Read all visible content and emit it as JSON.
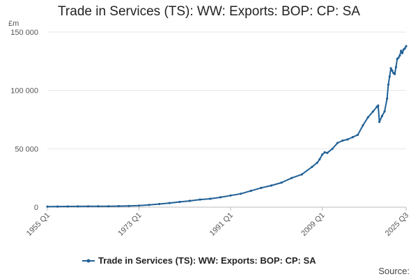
{
  "chart_data": {
    "type": "line",
    "title": "Trade in Services (TS): WW: Exports: BOP: CP: SA",
    "ylabel": "£m",
    "ylim": [
      0,
      150000
    ],
    "yticks": [
      0,
      50000,
      100000,
      150000
    ],
    "ytick_labels": [
      "0",
      "50 000",
      "100 000",
      "150 000"
    ],
    "xticks": [
      "1955 Q1",
      "1973 Q1",
      "1991 Q1",
      "2009 Q1",
      "2025 Q3"
    ],
    "grid": true,
    "legend_position": "bottom",
    "color": "#206095",
    "series": [
      {
        "name": "Trade in Services (TS): WW: Exports: BOP: CP: SA",
        "x": [
          "1955 Q1",
          "1957 Q1",
          "1959 Q1",
          "1961 Q1",
          "1963 Q1",
          "1965 Q1",
          "1967 Q1",
          "1969 Q1",
          "1971 Q1",
          "1973 Q1",
          "1975 Q1",
          "1977 Q1",
          "1979 Q1",
          "1981 Q1",
          "1983 Q1",
          "1985 Q1",
          "1987 Q1",
          "1989 Q1",
          "1991 Q1",
          "1993 Q1",
          "1995 Q1",
          "1997 Q1",
          "1999 Q1",
          "2001 Q1",
          "2003 Q1",
          "2005 Q1",
          "2007 Q1",
          "2008 Q1",
          "2008 Q3",
          "2009 Q1",
          "2009 Q3",
          "2010 Q1",
          "2011 Q1",
          "2012 Q1",
          "2013 Q1",
          "2014 Q1",
          "2015 Q1",
          "2016 Q1",
          "2017 Q1",
          "2018 Q1",
          "2019 Q1",
          "2019 Q4",
          "2020 Q1",
          "2020 Q2",
          "2020 Q4",
          "2021 Q2",
          "2021 Q4",
          "2022 Q1",
          "2022 Q2",
          "2022 Q3",
          "2022 Q4",
          "2023 Q1",
          "2023 Q2",
          "2023 Q3",
          "2023 Q4",
          "2024 Q1",
          "2024 Q2",
          "2024 Q3",
          "2024 Q4",
          "2025 Q1",
          "2025 Q2",
          "2025 Q3"
        ],
        "values": [
          500,
          550,
          600,
          650,
          700,
          750,
          800,
          900,
          1000,
          1300,
          1900,
          2700,
          3500,
          4500,
          5400,
          6500,
          7200,
          8400,
          10000,
          11500,
          14000,
          16500,
          18500,
          21000,
          25000,
          28000,
          34500,
          38000,
          41000,
          45000,
          47000,
          46500,
          50000,
          55000,
          57000,
          58000,
          60000,
          62000,
          70000,
          77000,
          82000,
          86000,
          87000,
          73000,
          78000,
          82000,
          93000,
          105000,
          112000,
          119000,
          117000,
          115000,
          114000,
          120000,
          127000,
          128000,
          130000,
          134000,
          132000,
          135000,
          136000,
          138000
        ]
      }
    ]
  },
  "source_label": "Source:"
}
